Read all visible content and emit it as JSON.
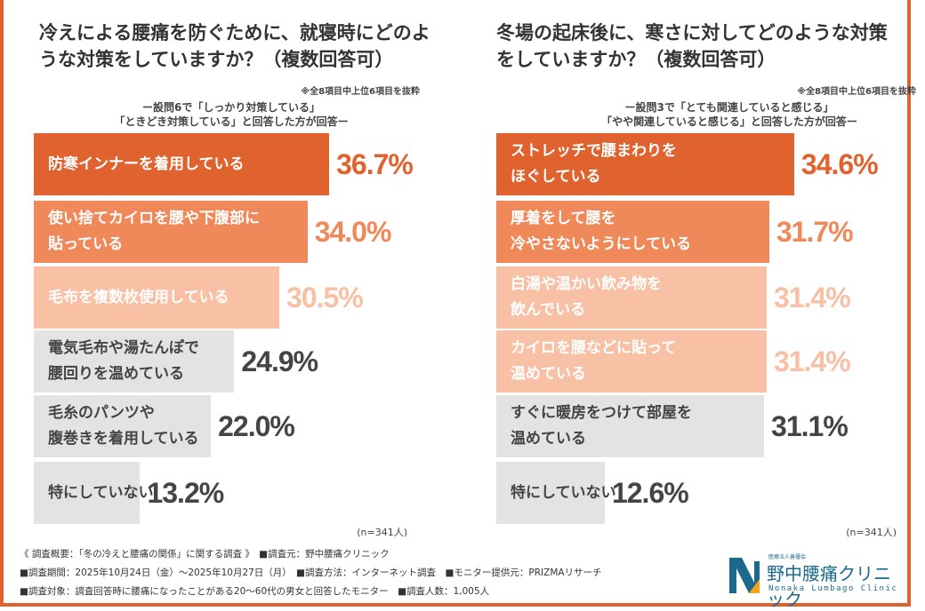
{
  "chart_data": [
    {
      "type": "bar",
      "orientation": "horizontal",
      "title": "冷えによる腰痛を防ぐために、就寝時にどのような対策をしていますか？（複数回答可）",
      "note": "※全8項目中上位6項目を抜粋",
      "subtitle": "ー設問6で「しっかり対策している」\n「ときどき対策している」と回答した方が回答ー",
      "categories": [
        "防寒インナーを着用している",
        "使い捨てカイロを腰や下腹部に\n貼っている",
        "毛布を複数枚使用している",
        "電気毛布や湯たんぽで\n腰回りを温めている",
        "毛糸のパンツや\n腹巻きを着用している",
        "特にしていない"
      ],
      "values": [
        36.7,
        34.0,
        30.5,
        24.9,
        22.0,
        13.2
      ],
      "value_labels": [
        "36.7%",
        "34.0%",
        "30.5%",
        "24.9%",
        "22.0%",
        "13.2%"
      ],
      "colors": [
        "#E0632F",
        "#F0895A",
        "#F8C0A4",
        "#E3E3E3",
        "#E3E3E3",
        "#E3E3E3"
      ],
      "n": "(n=341人)"
    },
    {
      "type": "bar",
      "orientation": "horizontal",
      "title": "冬場の起床後に、寒さに対してどのような対策をしていますか？（複数回答可）",
      "note": "※全8項目中上位6項目を抜粋",
      "subtitle": "ー設問3で「とても関連していると感じる」\n「やや関連していると感じる」と回答した方が回答ー",
      "categories": [
        "ストレッチで腰まわりを\nほぐしている",
        "厚着をして腰を\n冷やさないようにしている",
        "白湯や温かい飲み物を\n飲んでいる",
        "カイロを腰などに貼って\n温めている",
        "すぐに暖房をつけて部屋を\n温めている",
        "特にしていない"
      ],
      "values": [
        34.6,
        31.7,
        31.4,
        31.4,
        31.1,
        12.6
      ],
      "value_labels": [
        "34.6%",
        "31.7%",
        "31.4%",
        "31.4%",
        "31.1%",
        "12.6%"
      ],
      "colors": [
        "#E0632F",
        "#F0895A",
        "#F8C0A4",
        "#F8C0A4",
        "#E3E3E3",
        "#E3E3E3"
      ],
      "n": "(n=341人)"
    }
  ],
  "footer": {
    "line1": "《 調査概要：「冬の冷えと腰痛の関係」に関する調査 》　■調査元：野中腰痛クリニック",
    "line2": "■調査期間：2025年10月24日（金）～2025年10月27日（月）　■調査方法：インターネット調査　■モニター提供元：PRIZMAリサーチ",
    "line3": "■調査対象：調査回答時に腰痛になったことがある20～60代の男女と回答したモニター　■調査人数：1,005人"
  },
  "logo": {
    "org": "医療法人善優会",
    "name": "野中腰痛クリニック",
    "en": "Nonaka Lumbago Clinic",
    "colors": [
      "#1B6A8C",
      "#F2A31B"
    ]
  }
}
